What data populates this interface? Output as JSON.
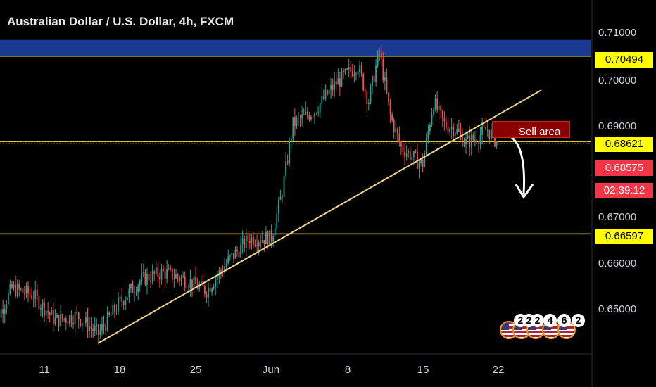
{
  "header": {
    "title": "Australian Dollar / U.S. Dollar, 4h, FXCM"
  },
  "price_axis": {
    "ticks": [
      "0.71000",
      "0.70000",
      "0.69000",
      "0.67000",
      "0.66000",
      "0.65000"
    ]
  },
  "price_labels": {
    "resistance": "0.70494",
    "sell_level": "0.68621",
    "current": "0.68575",
    "countdown": "02:39:12",
    "support": "0.66597"
  },
  "time_axis": {
    "ticks": [
      "11",
      "18",
      "25",
      "Jun",
      "8",
      "15",
      "22"
    ]
  },
  "annotation": {
    "sell_area": "Sell area"
  },
  "event_badges": [
    "2",
    "2",
    "2",
    "4",
    "6",
    "2"
  ],
  "colors": {
    "background": "#000000",
    "up_candle": "#26a69a",
    "down_candle": "#ef5350",
    "horizontal_line": "#f5e93a",
    "trendline": "#f0d58c",
    "resistance_zone": "#1a3a8f",
    "label_yellow": "#ffff00",
    "label_red": "#f23645"
  },
  "chart_data": {
    "type": "candlestick",
    "title": "Australian Dollar / U.S. Dollar, 4h, FXCM",
    "ylim": [
      0.6425,
      0.7135
    ],
    "grid": false,
    "horizontal_levels": [
      0.70494,
      0.68621,
      0.66597
    ],
    "resistance_zone": [
      0.7049,
      0.7085
    ],
    "current_price": 0.68575,
    "trendline": {
      "from": {
        "date": "May 16",
        "price": 0.642
      },
      "to": {
        "date": "Jun 26",
        "price": 0.6975
      }
    },
    "series": [
      {
        "date": "May 6",
        "close": 0.6445
      },
      {
        "date": "May 8",
        "close": 0.654
      },
      {
        "date": "May 10",
        "close": 0.6525
      },
      {
        "date": "May 12",
        "close": 0.647
      },
      {
        "date": "May 14",
        "close": 0.648
      },
      {
        "date": "May 16",
        "close": 0.644
      },
      {
        "date": "May 18",
        "close": 0.651
      },
      {
        "date": "May 20",
        "close": 0.656
      },
      {
        "date": "May 22",
        "close": 0.6575
      },
      {
        "date": "May 24",
        "close": 0.656
      },
      {
        "date": "May 26",
        "close": 0.6535
      },
      {
        "date": "May 28",
        "close": 0.66
      },
      {
        "date": "May 30",
        "close": 0.665
      },
      {
        "date": "Jun 1",
        "close": 0.665
      },
      {
        "date": "Jun 2",
        "close": 0.675
      },
      {
        "date": "Jun 3",
        "close": 0.69
      },
      {
        "date": "Jun 5",
        "close": 0.693
      },
      {
        "date": "Jun 7",
        "close": 0.699
      },
      {
        "date": "Jun 9",
        "close": 0.703
      },
      {
        "date": "Jun 10",
        "close": 0.695
      },
      {
        "date": "Jun 11",
        "close": 0.706
      },
      {
        "date": "Jun 12",
        "close": 0.692
      },
      {
        "date": "Jun 13",
        "close": 0.685
      },
      {
        "date": "Jun 15",
        "close": 0.681
      },
      {
        "date": "Jun 16",
        "close": 0.695
      },
      {
        "date": "Jun 17",
        "close": 0.69
      },
      {
        "date": "Jun 18",
        "close": 0.689
      },
      {
        "date": "Jun 19",
        "close": 0.686
      },
      {
        "date": "Jun 20",
        "close": 0.687
      },
      {
        "date": "Jun 21",
        "close": 0.689
      },
      {
        "date": "Jun 22",
        "close": 0.6858
      }
    ]
  }
}
